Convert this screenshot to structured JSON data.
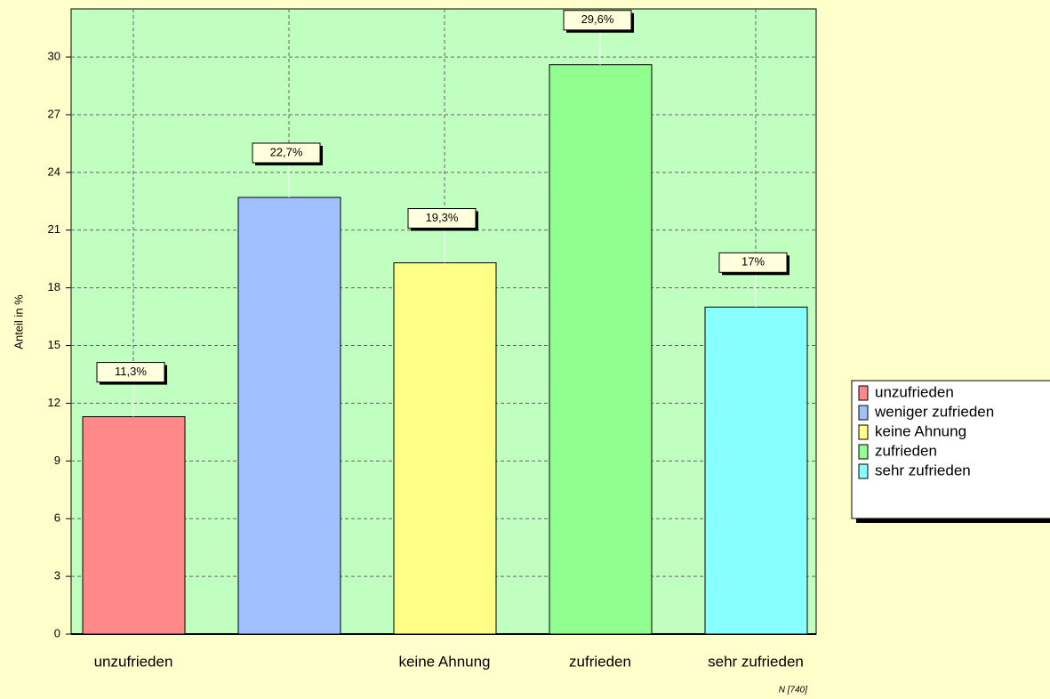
{
  "chart_data": {
    "type": "bar",
    "y_label": "Anteil in %",
    "categories": [
      "unzufrieden",
      null,
      "keine Ahnung",
      "zufrieden",
      "sehr zufrieden"
    ],
    "values": [
      11.3,
      22.7,
      19.3,
      29.6,
      17
    ],
    "value_labels": [
      "11,3%",
      "22,7%",
      "19,3%",
      "29,6%",
      "17%"
    ],
    "colors": [
      "#ff8888",
      "#a0c0ff",
      "#ffff88",
      "#90ff90",
      "#88ffff"
    ],
    "legend": [
      "unzufrieden",
      "weniger zufrieden",
      "keine Ahnung",
      "zufrieden",
      "sehr zufrieden"
    ],
    "legend_position": "right",
    "ylim": [
      0,
      32.5
    ],
    "yticks": [
      0,
      3,
      6,
      9,
      12,
      15,
      18,
      21,
      24,
      27,
      30
    ],
    "grid": true,
    "footnote": "N [740]"
  }
}
